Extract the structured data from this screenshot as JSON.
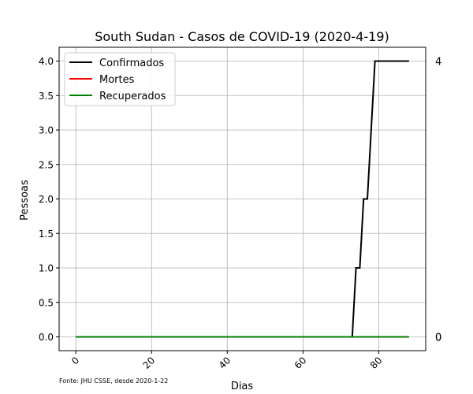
{
  "chart_data": {
    "type": "line",
    "title": "South Sudan - Casos de COVID-19 (2020-4-19)",
    "xlabel": "Dias",
    "ylabel": "Pessoas",
    "xlim": [
      -4.4,
      92.4
    ],
    "ylim": [
      -0.2,
      4.2
    ],
    "xticks": [
      0,
      20,
      40,
      60,
      80
    ],
    "yticks": [
      0.0,
      0.5,
      1.0,
      1.5,
      2.0,
      2.5,
      3.0,
      3.5,
      4.0
    ],
    "ytick_labels": [
      "0.0",
      "0.5",
      "1.0",
      "1.5",
      "2.0",
      "2.5",
      "3.0",
      "3.5",
      "4.0"
    ],
    "grid": true,
    "legend_position": "top-left",
    "series": [
      {
        "name": "Confirmados",
        "color": "#000000",
        "x": [
          0,
          73,
          74,
          75,
          76,
          77,
          78,
          79,
          80,
          88
        ],
        "y": [
          0,
          0,
          1,
          1,
          2,
          2,
          3,
          4,
          4,
          4
        ]
      },
      {
        "name": "Mortes",
        "color": "#ff0000",
        "x": [
          0,
          88
        ],
        "y": [
          0,
          0
        ]
      },
      {
        "name": "Recuperados",
        "color": "#008000",
        "x": [
          0,
          88
        ],
        "y": [
          0,
          0
        ]
      }
    ],
    "right_annotations": [
      {
        "y": 4,
        "text": "4"
      },
      {
        "y": 0,
        "text": "0"
      },
      {
        "y": 0,
        "text": "0"
      }
    ],
    "source_note": "Fonte: JHU CSSE, desde 2020-1-22"
  }
}
